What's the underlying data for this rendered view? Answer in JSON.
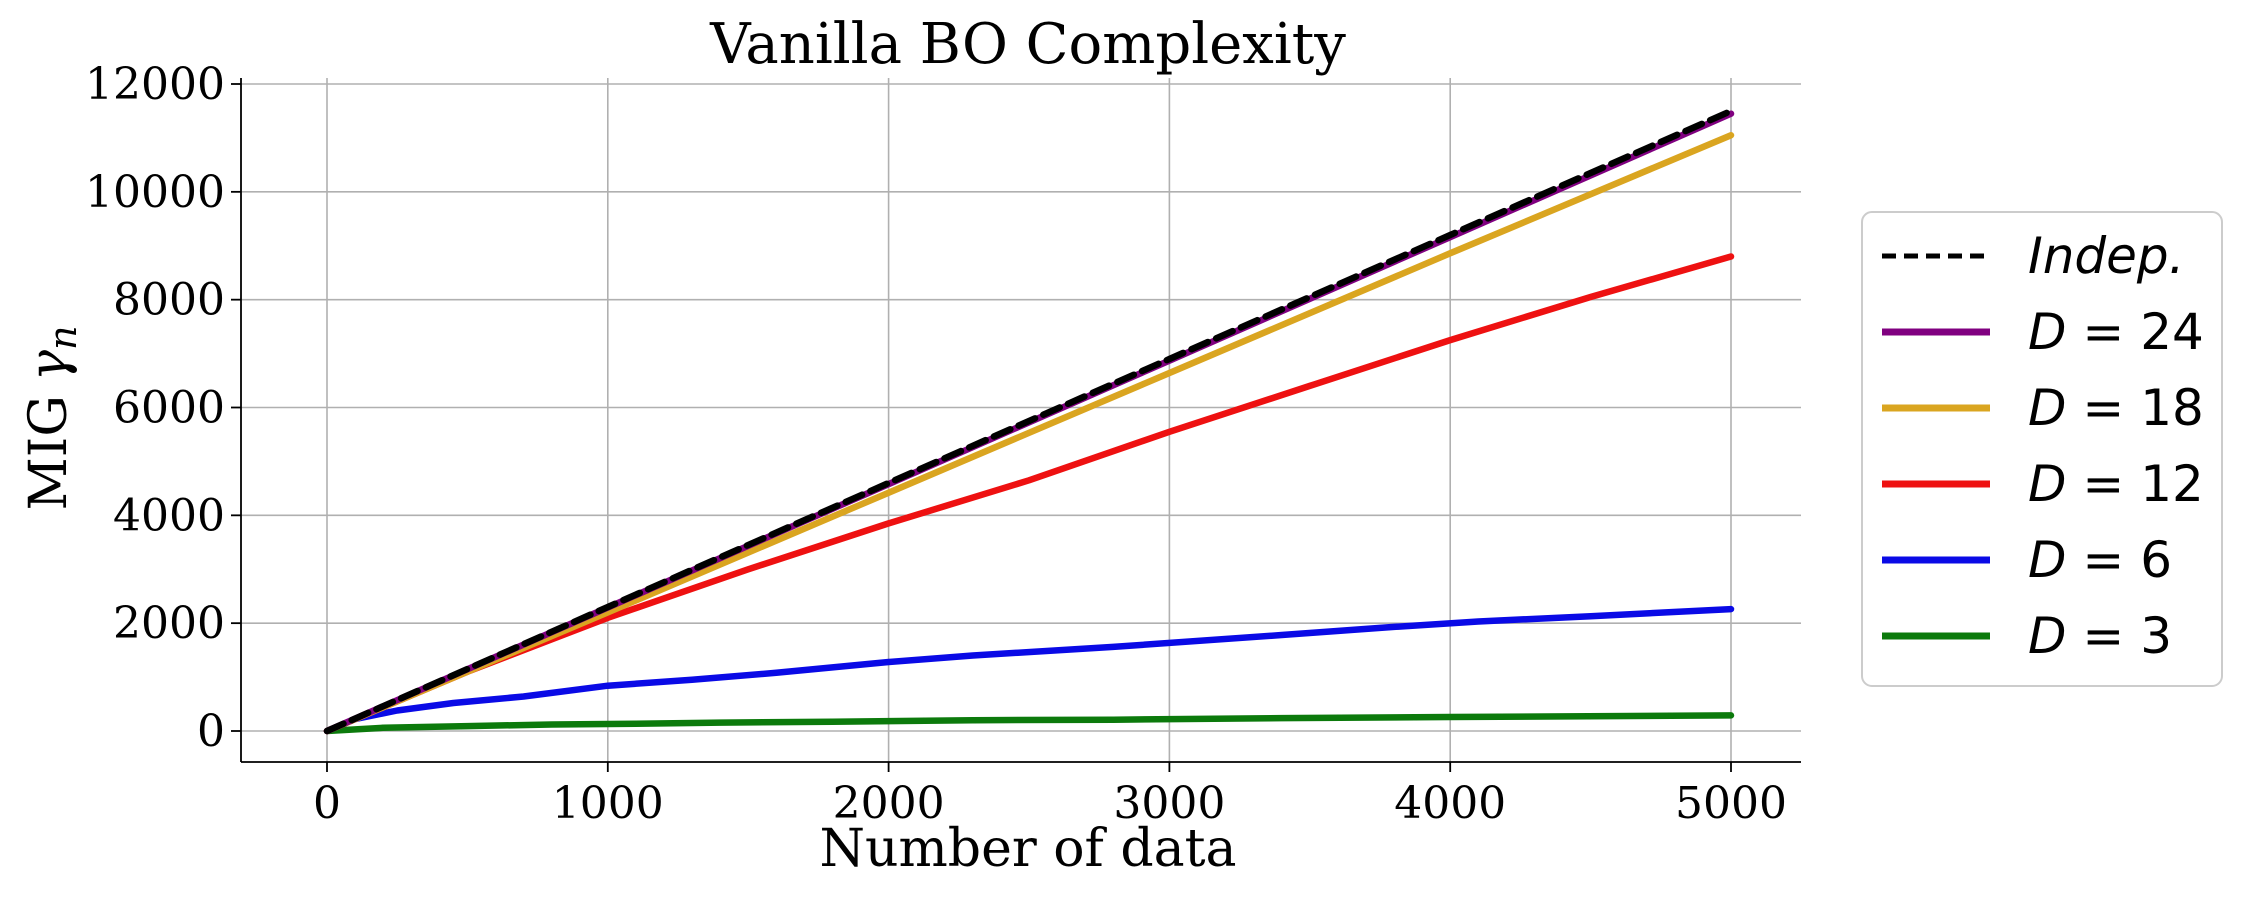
{
  "chart_data": {
    "type": "line",
    "title": "Vanilla BO Complexity",
    "xlabel": "Number of data",
    "ylabel": "MIG",
    "ylabel_symbol": "γ",
    "ylabel_subscript": "n",
    "xlim": [
      -250,
      5250
    ],
    "ylim": [
      -600,
      12200
    ],
    "xticks": [
      0,
      1000,
      2000,
      3000,
      4000,
      5000
    ],
    "yticks": [
      0,
      2000,
      4000,
      6000,
      8000,
      10000,
      12000
    ],
    "xtick_labels": [
      "0",
      "1000",
      "2000",
      "3000",
      "4000",
      "5000"
    ],
    "ytick_labels": [
      "0",
      "2000",
      "4000",
      "6000",
      "8000",
      "10000",
      "12000"
    ],
    "grid": true,
    "legend_position": "right",
    "series": [
      {
        "name": "Indep.",
        "legend_text": "Indep.",
        "color": "#000000",
        "dashed": true,
        "x": [
          0,
          1000,
          2000,
          3000,
          4000,
          5000
        ],
        "y": [
          0,
          2300,
          4600,
          6900,
          9200,
          11500
        ]
      },
      {
        "name": "D = 24",
        "legend_var": "D",
        "legend_rest": " = 24",
        "color": "#800080",
        "dashed": false,
        "x": [
          0,
          1000,
          2000,
          3000,
          4000,
          5000
        ],
        "y": [
          0,
          2290,
          4580,
          6870,
          9160,
          11450
        ]
      },
      {
        "name": "D = 18",
        "legend_var": "D",
        "legend_rest": " = 18",
        "color": "#DAA520",
        "dashed": false,
        "x": [
          0,
          1000,
          2000,
          3000,
          4000,
          5000
        ],
        "y": [
          0,
          2200,
          4420,
          6640,
          8860,
          11050
        ]
      },
      {
        "name": "D = 12",
        "legend_var": "D",
        "legend_rest": " = 12",
        "color": "#EE1111",
        "dashed": false,
        "x": [
          0,
          500,
          1000,
          1500,
          2000,
          2500,
          3000,
          3500,
          4000,
          4500,
          5000
        ],
        "y": [
          0,
          1100,
          2100,
          3000,
          3850,
          4650,
          5550,
          6400,
          7250,
          8050,
          8800
        ]
      },
      {
        "name": "D = 6",
        "legend_var": "D",
        "legend_rest": " = 6",
        "color": "#0A0AE6",
        "dashed": false,
        "x": [
          0,
          100,
          250,
          450,
          700,
          1000,
          1300,
          1600,
          2000,
          2300,
          2800,
          3400,
          3800,
          4100,
          4500,
          5000
        ],
        "y": [
          0,
          220,
          380,
          520,
          640,
          840,
          950,
          1080,
          1280,
          1400,
          1560,
          1780,
          1930,
          2030,
          2130,
          2260
        ]
      },
      {
        "name": "D = 3",
        "legend_var": "D",
        "legend_rest": " = 3",
        "color": "#0C7A0C",
        "dashed": false,
        "x": [
          0,
          200,
          500,
          800,
          1100,
          1400,
          1800,
          2300,
          2800,
          3400,
          4000,
          5000
        ],
        "y": [
          0,
          60,
          90,
          120,
          135,
          155,
          170,
          200,
          210,
          240,
          260,
          290
        ]
      }
    ]
  }
}
